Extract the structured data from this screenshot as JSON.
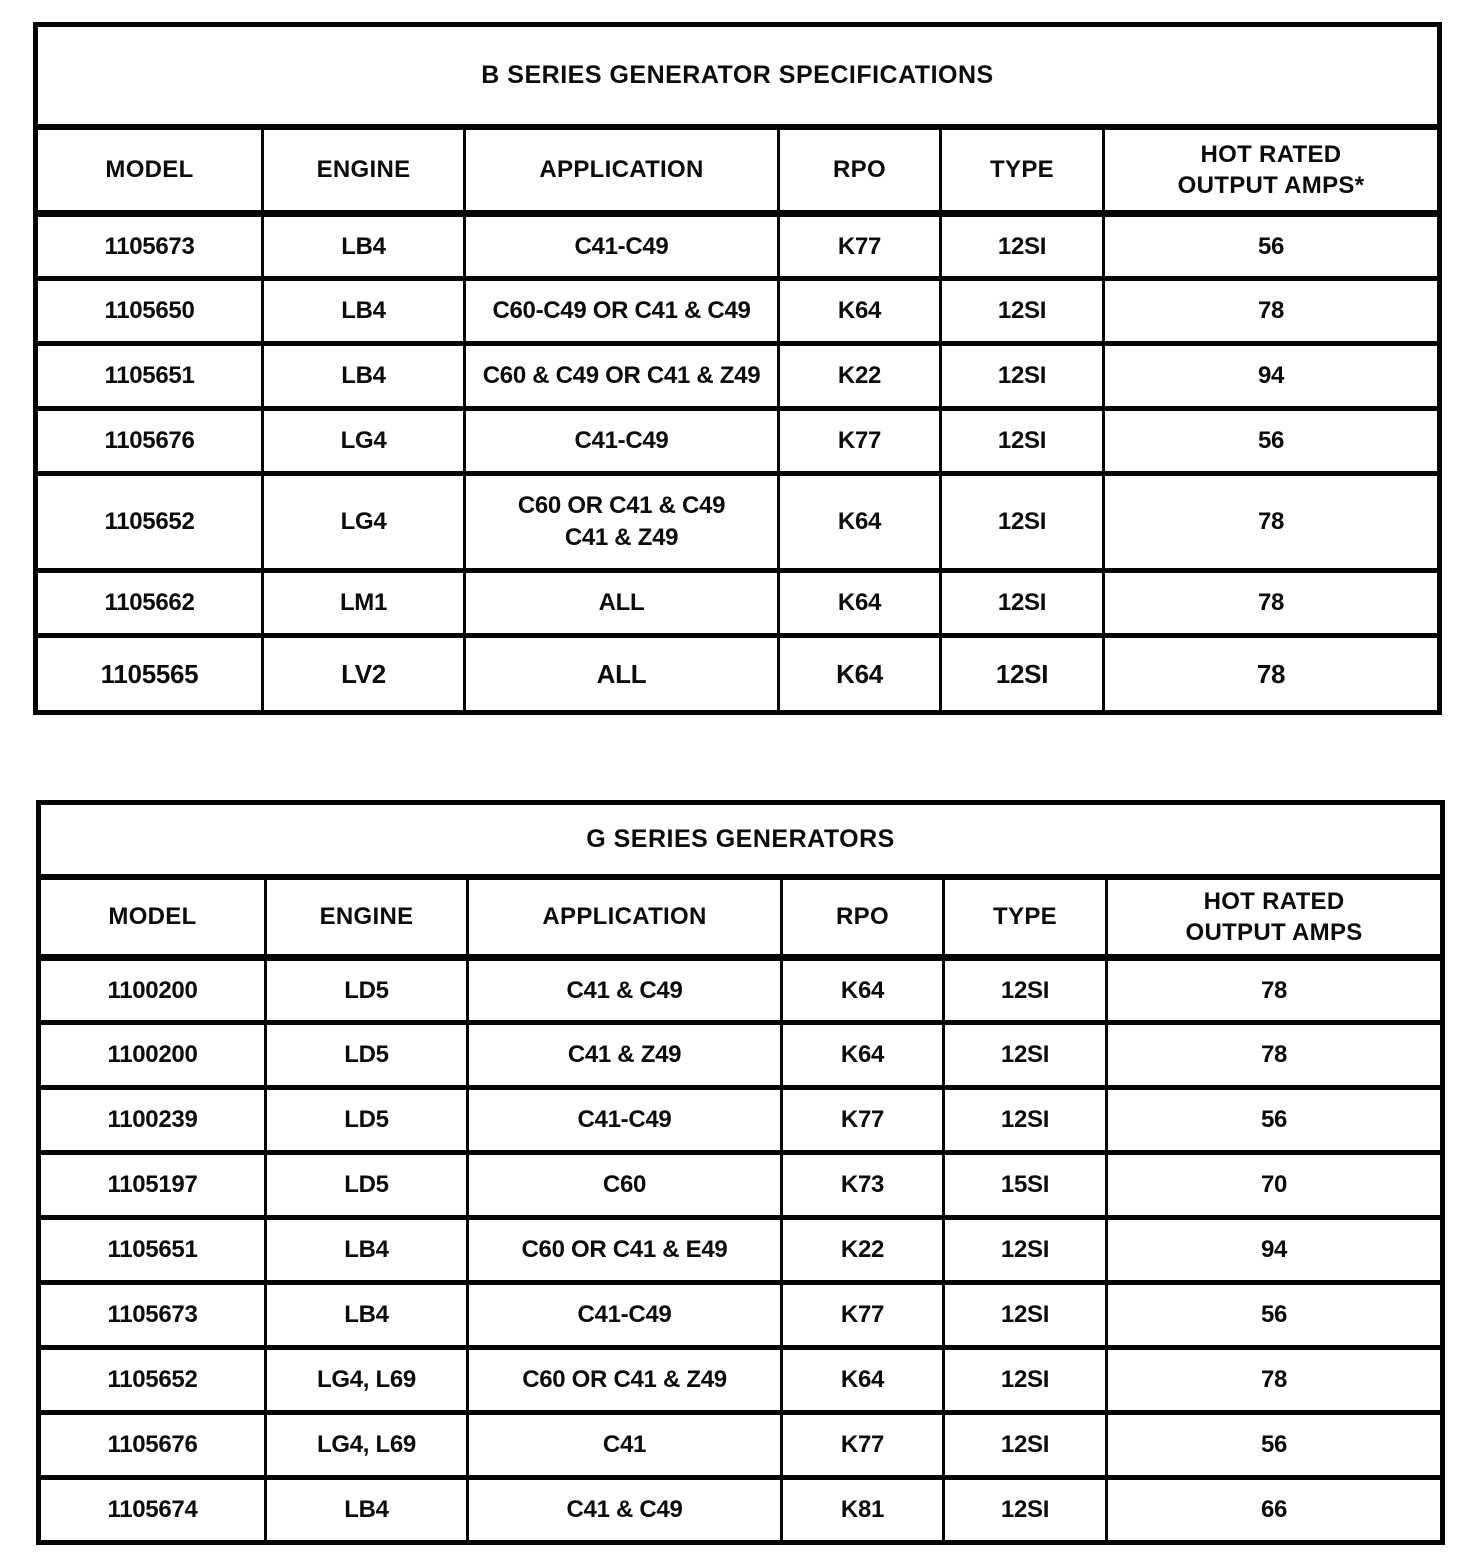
{
  "page": {
    "background": "#ffffff",
    "ink_color": "#0c0c0c"
  },
  "tables": [
    {
      "title": "B SERIES GENERATOR SPECIFICATIONS",
      "headers": [
        "MODEL",
        "ENGINE",
        "APPLICATION",
        "RPO",
        "TYPE",
        "HOT RATED\nOUTPUT AMPS*"
      ],
      "rows": [
        [
          "1105673",
          "LB4",
          "C41-C49",
          "K77",
          "12SI",
          "56"
        ],
        [
          "1105650",
          "LB4",
          "C60-C49 OR C41 & C49",
          "K64",
          "12SI",
          "78"
        ],
        [
          "1105651",
          "LB4",
          "C60 & C49 OR C41 & Z49",
          "K22",
          "12SI",
          "94"
        ],
        [
          "1105676",
          "LG4",
          "C41-C49",
          "K77",
          "12SI",
          "56"
        ],
        [
          "1105652",
          "LG4",
          "C60 OR C41 & C49\nC41 & Z49",
          "K64",
          "12SI",
          "78"
        ],
        [
          "1105662",
          "LM1",
          "ALL",
          "K64",
          "12SI",
          "78"
        ],
        [
          "1105565",
          "LV2",
          "ALL",
          "K64",
          "12SI",
          "78"
        ]
      ]
    },
    {
      "title": "G SERIES GENERATORS",
      "headers": [
        "MODEL",
        "ENGINE",
        "APPLICATION",
        "RPO",
        "TYPE",
        "HOT RATED\nOUTPUT AMPS"
      ],
      "rows": [
        [
          "1100200",
          "LD5",
          "C41 & C49",
          "K64",
          "12SI",
          "78"
        ],
        [
          "1100200",
          "LD5",
          "C41 & Z49",
          "K64",
          "12SI",
          "78"
        ],
        [
          "1100239",
          "LD5",
          "C41-C49",
          "K77",
          "12SI",
          "56"
        ],
        [
          "1105197",
          "LD5",
          "C60",
          "K73",
          "15SI",
          "70"
        ],
        [
          "1105651",
          "LB4",
          "C60 OR C41 & E49",
          "K22",
          "12SI",
          "94"
        ],
        [
          "1105673",
          "LB4",
          "C41-C49",
          "K77",
          "12SI",
          "56"
        ],
        [
          "1105652",
          "LG4, L69",
          "C60 OR C41 & Z49",
          "K64",
          "12SI",
          "78"
        ],
        [
          "1105676",
          "LG4, L69",
          "C41",
          "K77",
          "12SI",
          "56"
        ],
        [
          "1105674",
          "LB4",
          "C41 & C49",
          "K81",
          "12SI",
          "66"
        ]
      ]
    }
  ]
}
